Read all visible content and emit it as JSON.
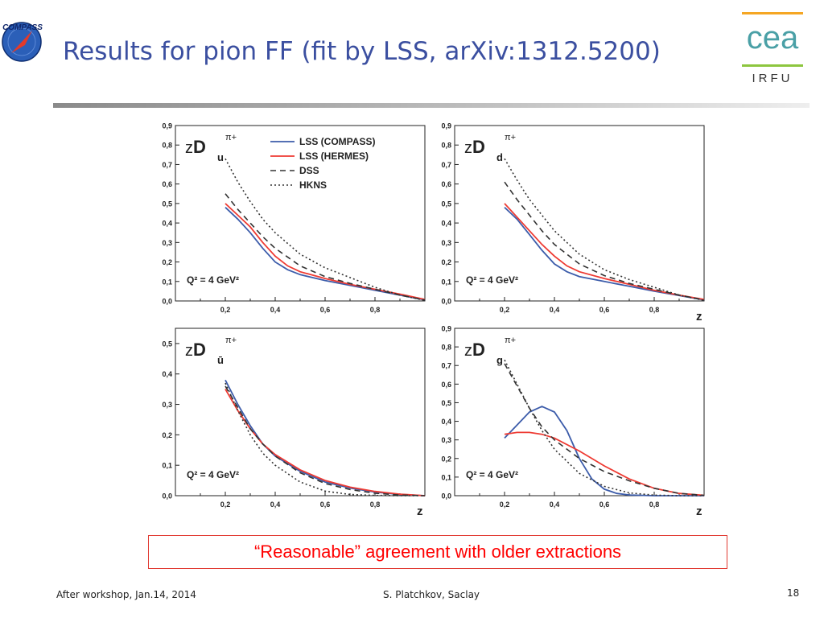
{
  "slide": {
    "title": "Results for pion FF  (fit by LSS, arXiv:1312.5200)",
    "note": "“Reasonable” agreement with older extractions"
  },
  "logos": {
    "compass_text": "COMPASS",
    "irfu_text": "IRFU",
    "cea_text": "cea"
  },
  "footer": {
    "left": "After workshop, Jan.14, 2014",
    "center": "S. Platchkov, Saclay",
    "page": "18"
  },
  "colors": {
    "title": "#3b4fa0",
    "lss_compass": "#3c5caa",
    "lss_hermes": "#ee3a32",
    "dss": "#333333",
    "hkns": "#333333",
    "note": "#ff0000",
    "cea_teal": "#4aa0a6",
    "irfu_orange": "#f5a623",
    "irfu_green": "#8dc63f"
  },
  "chart_data": [
    {
      "type": "line",
      "label_main": "zD",
      "label_sub": "u",
      "label_sup": "π+",
      "q2_label": "Q² = 4 GeV²",
      "xlabel": "",
      "xlim": [
        0.0,
        1.0
      ],
      "ylim": [
        0.0,
        0.9
      ],
      "xticks": [
        "0,2",
        "0,4",
        "0,6",
        "0,8"
      ],
      "yticks": [
        "0,0",
        "0,1",
        "0,2",
        "0,3",
        "0,4",
        "0,5",
        "0,6",
        "0,7",
        "0,8",
        "0,9"
      ],
      "legend": [
        "LSS (COMPASS)",
        "LSS (HERMES)",
        "DSS",
        "HKNS"
      ],
      "series": [
        {
          "name": "LSS (COMPASS)",
          "x": [
            0.2,
            0.25,
            0.3,
            0.35,
            0.4,
            0.45,
            0.5,
            0.6,
            0.7,
            0.8,
            0.9,
            1.0
          ],
          "y": [
            0.48,
            0.42,
            0.35,
            0.27,
            0.2,
            0.16,
            0.135,
            0.105,
            0.08,
            0.055,
            0.03,
            0.005
          ]
        },
        {
          "name": "LSS (HERMES)",
          "x": [
            0.2,
            0.25,
            0.3,
            0.35,
            0.4,
            0.45,
            0.5,
            0.6,
            0.7,
            0.8,
            0.9,
            1.0
          ],
          "y": [
            0.5,
            0.44,
            0.38,
            0.3,
            0.23,
            0.18,
            0.15,
            0.115,
            0.085,
            0.06,
            0.035,
            0.008
          ]
        },
        {
          "name": "DSS",
          "x": [
            0.2,
            0.25,
            0.3,
            0.35,
            0.4,
            0.5,
            0.6,
            0.7,
            0.8,
            0.9,
            1.0
          ],
          "y": [
            0.55,
            0.47,
            0.4,
            0.33,
            0.27,
            0.18,
            0.125,
            0.09,
            0.06,
            0.03,
            0.005
          ]
        },
        {
          "name": "HKNS",
          "x": [
            0.2,
            0.25,
            0.3,
            0.35,
            0.4,
            0.5,
            0.6,
            0.7,
            0.8,
            0.9,
            1.0
          ],
          "y": [
            0.73,
            0.61,
            0.51,
            0.42,
            0.35,
            0.24,
            0.17,
            0.12,
            0.07,
            0.03,
            0.003
          ]
        }
      ]
    },
    {
      "type": "line",
      "label_main": "zD",
      "label_sub": "d",
      "label_sup": "π+",
      "q2_label": "Q² = 4 GeV²",
      "xlabel": "z",
      "xlim": [
        0.0,
        1.0
      ],
      "ylim": [
        0.0,
        0.9
      ],
      "xticks": [
        "0,2",
        "0,4",
        "0,6",
        "0,8"
      ],
      "yticks": [
        "0,0",
        "0,1",
        "0,2",
        "0,3",
        "0,4",
        "0,5",
        "0,6",
        "0,7",
        "0,8",
        "0,9"
      ],
      "legend": [],
      "series": [
        {
          "name": "LSS (COMPASS)",
          "x": [
            0.2,
            0.25,
            0.3,
            0.35,
            0.4,
            0.45,
            0.5,
            0.6,
            0.7,
            0.8,
            0.9,
            1.0
          ],
          "y": [
            0.48,
            0.42,
            0.34,
            0.26,
            0.19,
            0.15,
            0.125,
            0.1,
            0.075,
            0.05,
            0.028,
            0.005
          ]
        },
        {
          "name": "LSS (HERMES)",
          "x": [
            0.2,
            0.25,
            0.3,
            0.35,
            0.4,
            0.45,
            0.5,
            0.6,
            0.7,
            0.8,
            0.9,
            1.0
          ],
          "y": [
            0.5,
            0.43,
            0.36,
            0.29,
            0.23,
            0.18,
            0.15,
            0.115,
            0.085,
            0.055,
            0.03,
            0.008
          ]
        },
        {
          "name": "DSS",
          "x": [
            0.2,
            0.25,
            0.3,
            0.35,
            0.4,
            0.5,
            0.6,
            0.7,
            0.8,
            0.9,
            1.0
          ],
          "y": [
            0.61,
            0.52,
            0.44,
            0.36,
            0.29,
            0.19,
            0.13,
            0.09,
            0.06,
            0.03,
            0.005
          ]
        },
        {
          "name": "HKNS",
          "x": [
            0.2,
            0.25,
            0.3,
            0.35,
            0.4,
            0.5,
            0.6,
            0.7,
            0.8,
            0.9,
            1.0
          ],
          "y": [
            0.73,
            0.62,
            0.52,
            0.44,
            0.36,
            0.24,
            0.16,
            0.11,
            0.07,
            0.03,
            0.003
          ]
        }
      ]
    },
    {
      "type": "line",
      "label_main": "zD",
      "label_sub": "ū",
      "label_sup": "π+",
      "q2_label": "Q² = 4 GeV²",
      "xlabel": "z",
      "xlim": [
        0.0,
        1.0
      ],
      "ylim": [
        0.0,
        0.55
      ],
      "xticks": [
        "0,2",
        "0,4",
        "0,6",
        "0,8"
      ],
      "yticks": [
        "0,0",
        "0,1",
        "0,2",
        "0,3",
        "0,4",
        "0,5"
      ],
      "legend": [],
      "series": [
        {
          "name": "LSS (COMPASS)",
          "x": [
            0.2,
            0.25,
            0.3,
            0.35,
            0.4,
            0.5,
            0.6,
            0.7,
            0.8,
            0.9,
            1.0
          ],
          "y": [
            0.38,
            0.3,
            0.23,
            0.17,
            0.13,
            0.08,
            0.045,
            0.025,
            0.012,
            0.004,
            0.0
          ]
        },
        {
          "name": "LSS (HERMES)",
          "x": [
            0.2,
            0.25,
            0.3,
            0.35,
            0.4,
            0.5,
            0.6,
            0.7,
            0.8,
            0.9,
            1.0
          ],
          "y": [
            0.35,
            0.28,
            0.22,
            0.17,
            0.135,
            0.085,
            0.05,
            0.028,
            0.014,
            0.005,
            0.0
          ]
        },
        {
          "name": "DSS",
          "x": [
            0.2,
            0.25,
            0.3,
            0.35,
            0.4,
            0.5,
            0.6,
            0.7,
            0.8,
            0.9,
            1.0
          ],
          "y": [
            0.36,
            0.29,
            0.22,
            0.17,
            0.13,
            0.075,
            0.04,
            0.02,
            0.008,
            0.002,
            0.0
          ]
        },
        {
          "name": "HKNS",
          "x": [
            0.2,
            0.25,
            0.3,
            0.35,
            0.4,
            0.5,
            0.6,
            0.7,
            0.8,
            0.9,
            1.0
          ],
          "y": [
            0.37,
            0.28,
            0.2,
            0.14,
            0.1,
            0.045,
            0.015,
            0.004,
            0.001,
            0.0,
            0.0
          ]
        }
      ]
    },
    {
      "type": "line",
      "label_main": "zD",
      "label_sub": "g",
      "label_sup": "π+",
      "q2_label": "Q² = 4 GeV²",
      "xlabel": "z",
      "xlim": [
        0.0,
        1.0
      ],
      "ylim": [
        0.0,
        0.9
      ],
      "xticks": [
        "0,2",
        "0,4",
        "0,6",
        "0,8"
      ],
      "yticks": [
        "0,0",
        "0,1",
        "0,2",
        "0,3",
        "0,4",
        "0,5",
        "0,6",
        "0,7",
        "0,8",
        "0,9"
      ],
      "legend": [],
      "series": [
        {
          "name": "LSS (COMPASS)",
          "x": [
            0.2,
            0.25,
            0.3,
            0.35,
            0.4,
            0.45,
            0.5,
            0.55,
            0.6,
            0.65,
            0.7,
            0.8,
            0.9,
            1.0
          ],
          "y": [
            0.31,
            0.38,
            0.45,
            0.48,
            0.45,
            0.35,
            0.2,
            0.09,
            0.035,
            0.012,
            0.004,
            0.0,
            0.0,
            0.0
          ]
        },
        {
          "name": "LSS (HERMES)",
          "x": [
            0.2,
            0.25,
            0.3,
            0.35,
            0.4,
            0.5,
            0.6,
            0.7,
            0.8,
            0.9,
            1.0
          ],
          "y": [
            0.33,
            0.34,
            0.34,
            0.33,
            0.31,
            0.24,
            0.16,
            0.09,
            0.04,
            0.012,
            0.002
          ]
        },
        {
          "name": "DSS",
          "x": [
            0.2,
            0.25,
            0.3,
            0.35,
            0.4,
            0.5,
            0.6,
            0.7,
            0.8,
            0.9,
            1.0
          ],
          "y": [
            0.71,
            0.59,
            0.47,
            0.37,
            0.3,
            0.2,
            0.13,
            0.08,
            0.04,
            0.012,
            0.002
          ]
        },
        {
          "name": "HKNS",
          "x": [
            0.2,
            0.25,
            0.3,
            0.35,
            0.4,
            0.5,
            0.6,
            0.7,
            0.8,
            0.9,
            1.0
          ],
          "y": [
            0.73,
            0.6,
            0.47,
            0.35,
            0.25,
            0.12,
            0.05,
            0.015,
            0.003,
            0.0,
            0.0
          ]
        }
      ]
    }
  ]
}
